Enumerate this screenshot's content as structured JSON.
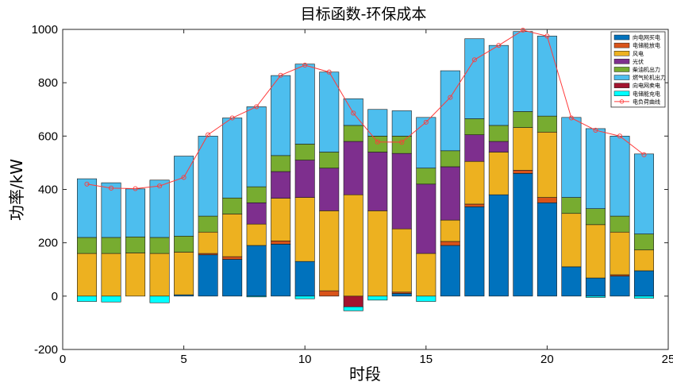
{
  "chart_data": {
    "type": "bar",
    "stacked": true,
    "title": "目标函数-环保成本",
    "xlabel": "时段",
    "ylabel": "功率/kW",
    "xlim": [
      0,
      25
    ],
    "ylim": [
      -200,
      1000
    ],
    "xticks": [
      0,
      5,
      10,
      15,
      20,
      25
    ],
    "yticks": [
      -200,
      0,
      200,
      400,
      600,
      800,
      1000
    ],
    "grid": false,
    "legend_position": "top-right",
    "categories": [
      1,
      2,
      3,
      4,
      5,
      6,
      7,
      8,
      9,
      10,
      11,
      12,
      13,
      14,
      15,
      16,
      17,
      18,
      19,
      20,
      21,
      22,
      23,
      24
    ],
    "series": [
      {
        "name": "向电网买电",
        "color": "#0072BD",
        "values": [
          0,
          0,
          0,
          0,
          5,
          155,
          138,
          190,
          195,
          130,
          0,
          0,
          0,
          10,
          0,
          190,
          335,
          380,
          460,
          350,
          110,
          68,
          75,
          95
        ]
      },
      {
        "name": "电储能放电",
        "color": "#D95319",
        "values": [
          0,
          0,
          0,
          0,
          0,
          5,
          10,
          0,
          12,
          0,
          20,
          0,
          0,
          5,
          0,
          15,
          10,
          0,
          12,
          20,
          0,
          0,
          5,
          0
        ]
      },
      {
        "name": "风电",
        "color": "#EDB120",
        "values": [
          160,
          160,
          162,
          160,
          160,
          80,
          160,
          80,
          160,
          240,
          300,
          380,
          320,
          237,
          160,
          80,
          160,
          160,
          160,
          245,
          200,
          200,
          160,
          78
        ]
      },
      {
        "name": "光伏",
        "color": "#7E2F8E",
        "values": [
          0,
          0,
          0,
          0,
          0,
          0,
          0,
          80,
          100,
          140,
          160,
          200,
          220,
          283,
          260,
          200,
          100,
          40,
          0,
          0,
          0,
          0,
          0,
          0
        ]
      },
      {
        "name": "柴油机出力",
        "color": "#77AC30",
        "values": [
          60,
          60,
          60,
          60,
          60,
          60,
          60,
          60,
          60,
          60,
          60,
          60,
          60,
          65,
          60,
          60,
          60,
          60,
          60,
          60,
          60,
          60,
          60,
          60
        ]
      },
      {
        "name": "燃气轮机出力",
        "color": "#4DBEEE",
        "values": [
          220,
          205,
          180,
          215,
          300,
          300,
          300,
          300,
          300,
          300,
          300,
          100,
          100,
          95,
          190,
          300,
          300,
          300,
          300,
          300,
          300,
          300,
          300,
          300
        ]
      },
      {
        "name": "向电网卖电",
        "color": "#A2142F",
        "values": [
          0,
          0,
          0,
          0,
          0,
          0,
          0,
          0,
          0,
          0,
          0,
          -40,
          0,
          0,
          0,
          0,
          0,
          0,
          0,
          0,
          0,
          0,
          0,
          0
        ]
      },
      {
        "name": "电储能充电",
        "color": "#00FFFF",
        "values": [
          -20,
          -22,
          0,
          -25,
          0,
          0,
          0,
          -3,
          0,
          -10,
          0,
          -15,
          -15,
          0,
          -20,
          0,
          0,
          0,
          0,
          0,
          0,
          -5,
          0,
          -8
        ]
      }
    ],
    "line_series": {
      "name": "电负荷曲线",
      "color": "#FF3B3B",
      "values": [
        420,
        405,
        403,
        413,
        445,
        605,
        668,
        710,
        828,
        866,
        840,
        686,
        578,
        577,
        652,
        745,
        886,
        940,
        997,
        975,
        668,
        622,
        600,
        530
      ]
    }
  }
}
